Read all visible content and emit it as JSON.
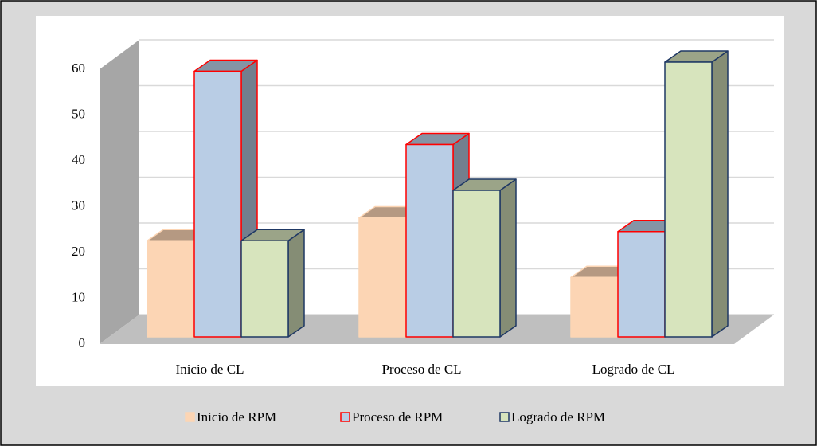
{
  "chart_data": {
    "type": "bar3d",
    "categories": [
      "Inicio de CL",
      "Proceso de CL",
      "Logrado de CL"
    ],
    "series": [
      {
        "name": "Inicio de RPM",
        "color": "#fcd5b4",
        "edgecolor": "#fcd5b4",
        "values": [
          21,
          26,
          13
        ]
      },
      {
        "name": "Proceso de RPM",
        "color": "#b9cde5",
        "edgecolor": "#ff0000",
        "values": [
          58,
          42,
          23
        ]
      },
      {
        "name": "Logrado de RPM",
        "color": "#d7e4bd",
        "edgecolor": "#1f3864",
        "values": [
          21,
          32,
          60
        ]
      }
    ],
    "ylim": [
      0,
      60
    ],
    "yticks": [
      0,
      10,
      20,
      30,
      40,
      50,
      60
    ],
    "grid": true,
    "legend": "bottom"
  }
}
